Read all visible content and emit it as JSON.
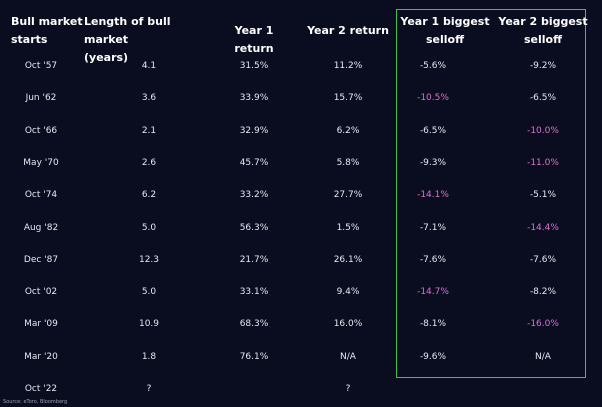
{
  "chart_data": {
    "type": "table",
    "columns": [
      "Bull market starts",
      "Length of bull market (years)",
      "Year 1 return",
      "Year 2 return",
      "Year 1 biggest selloff",
      "Year 2 biggest selloff"
    ],
    "header_lines": [
      [
        "Bull market",
        "starts"
      ],
      [
        "Length of bull market",
        "(years)"
      ],
      [
        "Year 1 return"
      ],
      [
        "Year 2 return"
      ],
      [
        "Year 1 biggest",
        "selloff"
      ],
      [
        "Year 2 biggest",
        "selloff"
      ]
    ],
    "rows": [
      [
        "Oct '57",
        "4.1",
        "31.5%",
        "11.2%",
        "-5.6%",
        "-9.2%"
      ],
      [
        "Jun '62",
        "3.6",
        "33.9%",
        "15.7%",
        "-10.5%",
        "-6.5%"
      ],
      [
        "Oct '66",
        "2.1",
        "32.9%",
        "6.2%",
        "-6.5%",
        "-10.0%"
      ],
      [
        "May '70",
        "2.6",
        "45.7%",
        "5.8%",
        "-9.3%",
        "-11.0%"
      ],
      [
        "Oct '74",
        "6.2",
        "33.2%",
        "27.7%",
        "-14.1%",
        "-5.1%"
      ],
      [
        "Aug '82",
        "5.0",
        "56.3%",
        "1.5%",
        "-7.1%",
        "-14.4%"
      ],
      [
        "Dec '87",
        "12.3",
        "21.7%",
        "26.1%",
        "-7.6%",
        "-7.6%"
      ],
      [
        "Oct '02",
        "5.0",
        "33.1%",
        "9.4%",
        "-14.7%",
        "-8.2%"
      ],
      [
        "Mar '09",
        "10.9",
        "68.3%",
        "16.0%",
        "-8.1%",
        "-16.0%"
      ],
      [
        "Mar '20",
        "1.8",
        "76.1%",
        "N/A",
        "-9.6%",
        "N/A"
      ],
      [
        "Oct '22",
        "?",
        "",
        "?",
        "",
        ""
      ]
    ],
    "highlighted_cells": [
      [
        1,
        4
      ],
      [
        2,
        5
      ],
      [
        3,
        5
      ],
      [
        4,
        4
      ],
      [
        5,
        5
      ],
      [
        7,
        4
      ],
      [
        8,
        5
      ]
    ],
    "highlight_color": "#e06fd0",
    "box_color": "#3ec24b",
    "boxed_columns": [
      4,
      5
    ]
  },
  "source": "Source: eToro, Bloomberg"
}
